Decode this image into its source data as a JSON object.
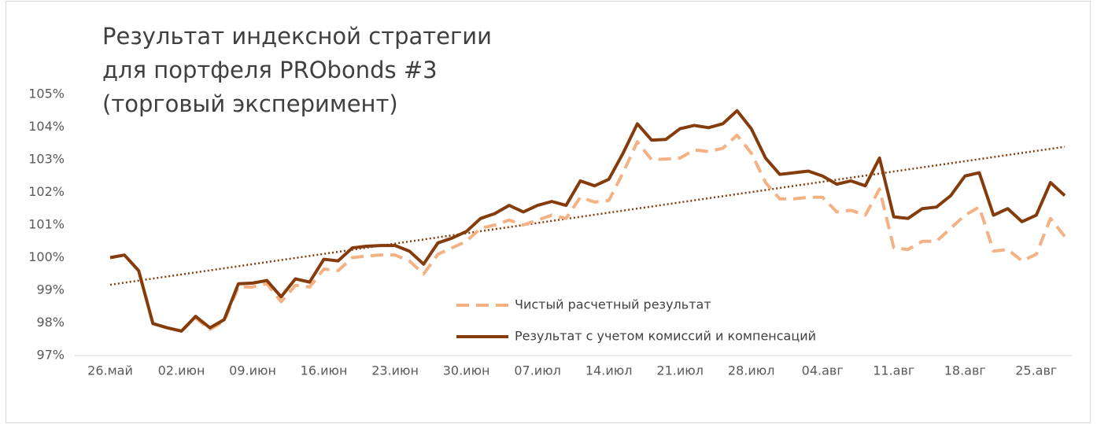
{
  "chart_data": {
    "type": "line",
    "title": [
      "Результат индексной стратегии",
      "для портфеля PRObonds #3",
      "(торговый эксперимент)"
    ],
    "categories": [
      "26.май",
      null,
      null,
      null,
      null,
      "02.июн",
      null,
      null,
      null,
      null,
      "09.июн",
      null,
      null,
      null,
      null,
      "16.июн",
      null,
      null,
      null,
      null,
      "23.июн",
      null,
      null,
      null,
      null,
      "30.июн",
      null,
      null,
      null,
      null,
      "07.июл",
      null,
      null,
      null,
      null,
      "14.июл",
      null,
      null,
      null,
      null,
      "21.июл",
      null,
      null,
      null,
      null,
      "28.июл",
      null,
      null,
      null,
      null,
      "04.авг",
      null,
      null,
      null,
      null,
      "11.авг",
      null,
      null,
      null,
      null,
      "18.авг",
      null,
      null,
      null,
      null,
      "25.авг",
      null,
      null
    ],
    "series": [
      {
        "name": "Чистый расчетный результат",
        "color": "#f4b183",
        "dash": "dashed",
        "values": [
          100.0,
          100.08,
          99.6,
          97.98,
          97.85,
          97.75,
          98.15,
          97.8,
          98.05,
          99.1,
          99.1,
          99.2,
          98.65,
          99.15,
          99.1,
          99.65,
          99.6,
          100.0,
          100.05,
          100.08,
          100.08,
          99.9,
          99.5,
          100.1,
          100.3,
          100.5,
          100.9,
          101.0,
          101.15,
          101.0,
          101.15,
          101.3,
          101.2,
          101.85,
          101.7,
          101.75,
          102.6,
          103.55,
          103.0,
          103.02,
          103.05,
          103.3,
          103.25,
          103.35,
          103.75,
          103.2,
          102.3,
          101.8,
          101.8,
          101.85,
          101.85,
          101.4,
          101.45,
          101.3,
          102.1,
          100.3,
          100.25,
          100.5,
          100.5,
          100.9,
          101.3,
          101.55,
          100.2,
          100.25,
          99.9,
          100.1,
          101.2,
          100.65
        ]
      },
      {
        "name": "Результат с учетом комиссий и компенсаций",
        "color": "#843c0c",
        "dash": "solid",
        "values": [
          100.0,
          100.08,
          99.6,
          97.98,
          97.85,
          97.75,
          98.2,
          97.85,
          98.1,
          99.2,
          99.22,
          99.3,
          98.8,
          99.35,
          99.25,
          99.95,
          99.9,
          100.3,
          100.35,
          100.37,
          100.37,
          100.2,
          99.8,
          100.45,
          100.6,
          100.8,
          101.2,
          101.35,
          101.6,
          101.4,
          101.6,
          101.72,
          101.6,
          102.35,
          102.2,
          102.4,
          103.2,
          104.1,
          103.6,
          103.62,
          103.95,
          104.05,
          103.98,
          104.1,
          104.5,
          103.95,
          103.05,
          102.55,
          102.6,
          102.65,
          102.5,
          102.25,
          102.35,
          102.2,
          103.05,
          101.25,
          101.2,
          101.5,
          101.55,
          101.9,
          102.5,
          102.6,
          101.3,
          101.5,
          101.1,
          101.3,
          102.3,
          101.9
        ]
      }
    ],
    "trendline": {
      "series": 1,
      "kind": "linear",
      "color": "#843c0c"
    },
    "ylim": [
      97,
      105
    ],
    "yticks": [
      {
        "value": 97,
        "label": "97%"
      },
      {
        "value": 98,
        "label": "98%"
      },
      {
        "value": 99,
        "label": "99%"
      },
      {
        "value": 100,
        "label": "100%"
      },
      {
        "value": 101,
        "label": "101%"
      },
      {
        "value": 102,
        "label": "102%"
      },
      {
        "value": 103,
        "label": "103%"
      },
      {
        "value": 104,
        "label": "104%"
      },
      {
        "value": 105,
        "label": "105%"
      }
    ],
    "grid": false
  }
}
